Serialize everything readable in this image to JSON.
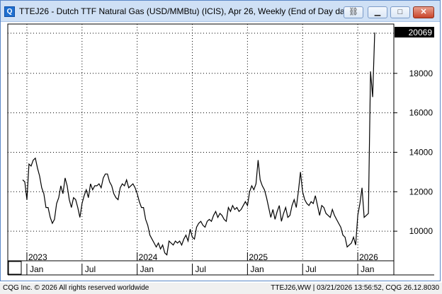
{
  "window": {
    "title": "TTEJ26 - Dutch TTF Natural Gas (USD/MMBtu) (ICIS), Apr 26, Weekly (End of Day dat...",
    "icon": "chart-app-icon",
    "controls": [
      "link-icon",
      "minimize-icon",
      "maximize-icon",
      "close-icon"
    ]
  },
  "status": {
    "left": "CQG Inc. © 2026 All rights reserved worldwide",
    "right": "TTEJ26,WW | 03/21/2026 13:56:52, CQG 26.12.8030"
  },
  "chart_data": {
    "type": "line",
    "ylim": [
      8500,
      20500
    ],
    "yticks": [
      10000,
      12000,
      14000,
      16000,
      18000
    ],
    "ytick_labels": [
      "10000",
      "12000",
      "14000",
      "16000",
      "18000"
    ],
    "last_value_label": "20069",
    "last_value": 20069,
    "x_month_labels": [
      {
        "label": "Jan",
        "week": 2
      },
      {
        "label": "Jul",
        "week": 28
      },
      {
        "label": "Jan",
        "week": 54
      },
      {
        "label": "Jul",
        "week": 80
      },
      {
        "label": "Jan",
        "week": 106
      },
      {
        "label": "Jul",
        "week": 132
      },
      {
        "label": "Jan",
        "week": 158
      }
    ],
    "x_year_labels": [
      {
        "label": "2023",
        "week": 2
      },
      {
        "label": "2024",
        "week": 54
      },
      {
        "label": "2025",
        "week": 106
      },
      {
        "label": "2026",
        "week": 158
      }
    ],
    "x_range": [
      -7,
      175
    ],
    "grid": "dotted",
    "colors": {
      "line": "#000000",
      "grid": "#000000",
      "label_bg": "#000000",
      "label_fg": "#ffffff"
    },
    "values": [
      12600,
      12500,
      11600,
      13400,
      13300,
      13600,
      13700,
      13200,
      12800,
      12200,
      11900,
      11200,
      11200,
      10700,
      10400,
      10600,
      11400,
      11700,
      12300,
      11900,
      12700,
      12300,
      11600,
      11200,
      11700,
      11600,
      11200,
      10700,
      11400,
      11800,
      12100,
      11700,
      12400,
      12100,
      12300,
      12300,
      12400,
      12200,
      12700,
      12900,
      12900,
      12500,
      12300,
      11900,
      11700,
      11600,
      12200,
      12400,
      12300,
      12600,
      12200,
      12300,
      12400,
      12200,
      11900,
      11500,
      11200,
      11200,
      10600,
      10300,
      9800,
      9600,
      9400,
      9200,
      9400,
      9100,
      9300,
      8900,
      8800,
      9500,
      9400,
      9300,
      9500,
      9400,
      9500,
      9300,
      9600,
      9800,
      9500,
      10100,
      9700,
      9600,
      10200,
      10400,
      10500,
      10300,
      10200,
      10500,
      10600,
      10500,
      10800,
      11000,
      10700,
      10900,
      10800,
      10600,
      10500,
      11200,
      11000,
      11300,
      11100,
      11200,
      11000,
      11100,
      11300,
      11500,
      11300,
      12000,
      12300,
      12100,
      12400,
      13600,
      12600,
      12300,
      12100,
      11700,
      11200,
      10700,
      11100,
      10600,
      11000,
      11300,
      10500,
      10900,
      11200,
      10700,
      10800,
      11300,
      11600,
      11200,
      12000,
      13000,
      12000,
      11600,
      11400,
      11300,
      11500,
      11400,
      11800,
      11300,
      10800,
      11300,
      11200,
      10900,
      10800,
      10700,
      11100,
      10800,
      10600,
      10400,
      10200,
      9800,
      9700,
      9200,
      9300,
      9400,
      9700,
      9300,
      10800,
      11400,
      12200,
      10700,
      10800,
      10900,
      18100,
      16800,
      20069
    ]
  }
}
